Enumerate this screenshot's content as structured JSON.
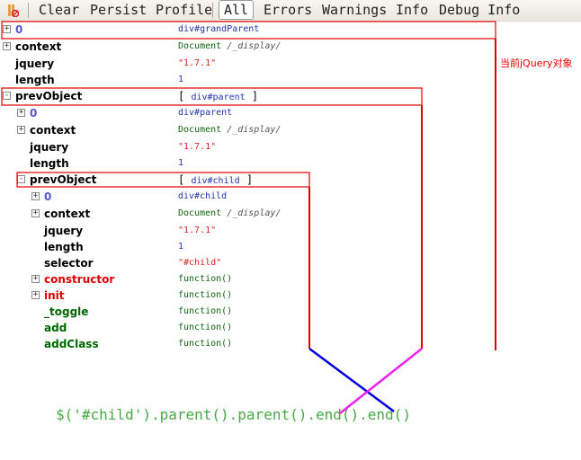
{
  "toolbar": {
    "clear": "Clear",
    "persist": "Persist",
    "profile": "Profile",
    "all": "All",
    "errors": "Errors",
    "warnings": "Warnings",
    "info": "Info",
    "debug": "Debug Info"
  },
  "rows": [
    {
      "name": "0",
      "value": "div#grandParent",
      "expander": "+"
    },
    {
      "name": "context",
      "value": "Document",
      "value2": "/_display/",
      "expander": "+"
    },
    {
      "name": "jquery",
      "value": "\"1.7.1\""
    },
    {
      "name": "length",
      "value": "1"
    },
    {
      "name": "prevObject",
      "value": "div#parent",
      "expander": "-"
    },
    {
      "name": "0",
      "value": "div#parent",
      "expander": "+"
    },
    {
      "name": "context",
      "value": "Document",
      "value2": "/_display/",
      "expander": "+"
    },
    {
      "name": "jquery",
      "value": "\"1.7.1\""
    },
    {
      "name": "length",
      "value": "1"
    },
    {
      "name": "prevObject",
      "value": "div#child",
      "expander": "-"
    },
    {
      "name": "0",
      "value": "div#child",
      "expander": "+"
    },
    {
      "name": "context",
      "value": "Document",
      "value2": "/_display/",
      "expander": "+"
    },
    {
      "name": "jquery",
      "value": "\"1.7.1\""
    },
    {
      "name": "length",
      "value": "1"
    },
    {
      "name": "selector",
      "value": "\"#child\""
    },
    {
      "name": "constructor",
      "value": "function()",
      "expander": "+"
    },
    {
      "name": "init",
      "value": "function()",
      "expander": "+"
    },
    {
      "name": "_toggle",
      "value": "function()"
    },
    {
      "name": "add",
      "value": "function()"
    },
    {
      "name": "addClass",
      "value": "function()"
    }
  ],
  "annotation": "当前jQuery对象",
  "code": "$('#child').parent().parent().end().end()",
  "colors": {
    "box": "#e00000",
    "blue_line": "#0000dd",
    "magenta_line": "#ee22ee"
  }
}
